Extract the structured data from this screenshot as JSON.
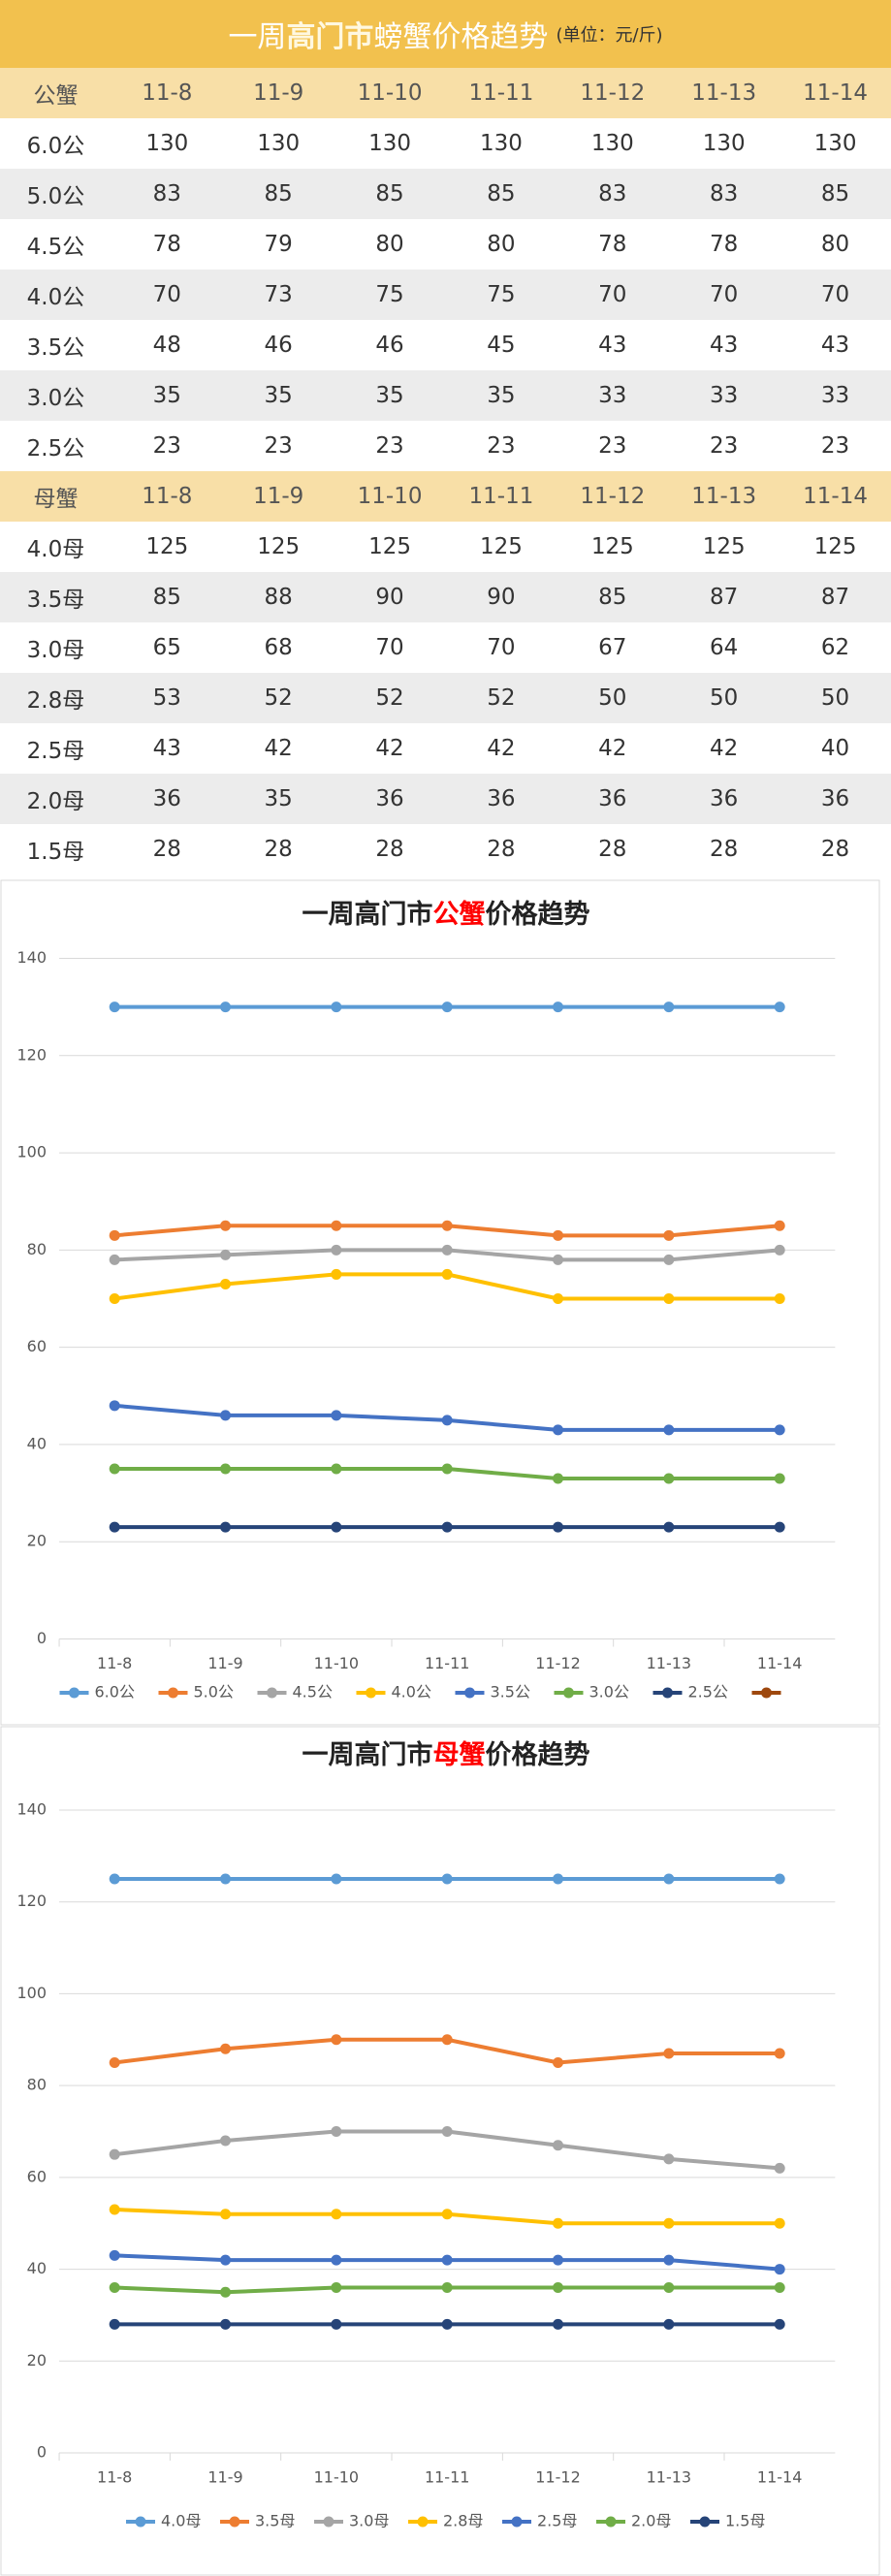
{
  "table": {
    "title_parts": [
      "一周",
      "高门市",
      "螃蟹价格趋势"
    ],
    "unit": "(单位：元/斤)",
    "sections": [
      {
        "header": [
          "公蟹",
          "11-8",
          "11-9",
          "11-10",
          "11-11",
          "11-12",
          "11-13",
          "11-14"
        ],
        "rows": [
          [
            "6.0公",
            130,
            130,
            130,
            130,
            130,
            130,
            130
          ],
          [
            "5.0公",
            83,
            85,
            85,
            85,
            83,
            83,
            85
          ],
          [
            "4.5公",
            78,
            79,
            80,
            80,
            78,
            78,
            80
          ],
          [
            "4.0公",
            70,
            73,
            75,
            75,
            70,
            70,
            70
          ],
          [
            "3.5公",
            48,
            46,
            46,
            45,
            43,
            43,
            43
          ],
          [
            "3.0公",
            35,
            35,
            35,
            35,
            33,
            33,
            33
          ],
          [
            "2.5公",
            23,
            23,
            23,
            23,
            23,
            23,
            23
          ]
        ]
      },
      {
        "header": [
          "母蟹",
          "11-8",
          "11-9",
          "11-10",
          "11-11",
          "11-12",
          "11-13",
          "11-14"
        ],
        "rows": [
          [
            "4.0母",
            125,
            125,
            125,
            125,
            125,
            125,
            125
          ],
          [
            "3.5母",
            85,
            88,
            90,
            90,
            85,
            87,
            87
          ],
          [
            "3.0母",
            65,
            68,
            70,
            70,
            67,
            64,
            62
          ],
          [
            "2.8母",
            53,
            52,
            52,
            52,
            50,
            50,
            50
          ],
          [
            "2.5母",
            43,
            42,
            42,
            42,
            42,
            42,
            40
          ],
          [
            "2.0母",
            36,
            35,
            36,
            36,
            36,
            36,
            36
          ],
          [
            "1.5母",
            28,
            28,
            28,
            28,
            28,
            28,
            28
          ]
        ]
      }
    ]
  },
  "chart_data": [
    {
      "type": "line",
      "title_parts": [
        "一周高门市",
        "公蟹",
        "价格趋势"
      ],
      "categories": [
        "11-8",
        "11-9",
        "11-10",
        "11-11",
        "11-12",
        "11-13",
        "11-14"
      ],
      "ylim": [
        0,
        140
      ],
      "yticks": [
        0,
        20,
        40,
        60,
        80,
        100,
        120,
        140
      ],
      "grid": true,
      "legend": "bottom",
      "series": [
        {
          "name": "6.0公",
          "color": "#5b9bd5",
          "values": [
            130,
            130,
            130,
            130,
            130,
            130,
            130
          ]
        },
        {
          "name": "5.0公",
          "color": "#ed7d31",
          "values": [
            83,
            85,
            85,
            85,
            83,
            83,
            85
          ]
        },
        {
          "name": "4.5公",
          "color": "#a5a5a5",
          "values": [
            78,
            79,
            80,
            80,
            78,
            78,
            80
          ]
        },
        {
          "name": "4.0公",
          "color": "#ffc000",
          "values": [
            70,
            73,
            75,
            75,
            70,
            70,
            70
          ]
        },
        {
          "name": "3.5公",
          "color": "#4472c4",
          "values": [
            48,
            46,
            46,
            45,
            43,
            43,
            43
          ]
        },
        {
          "name": "3.0公",
          "color": "#70ad47",
          "values": [
            35,
            35,
            35,
            35,
            33,
            33,
            33
          ]
        },
        {
          "name": "2.5公",
          "color": "#264478",
          "values": [
            23,
            23,
            23,
            23,
            23,
            23,
            23
          ]
        },
        {
          "name": null,
          "color": "#9e480e",
          "values": [
            null,
            null,
            null,
            null,
            null,
            null,
            null
          ]
        }
      ]
    },
    {
      "type": "line",
      "title_parts": [
        "一周高门市",
        "母蟹",
        "价格趋势"
      ],
      "categories": [
        "11-8",
        "11-9",
        "11-10",
        "11-11",
        "11-12",
        "11-13",
        "11-14"
      ],
      "ylim": [
        0,
        140
      ],
      "yticks": [
        0,
        20,
        40,
        60,
        80,
        100,
        120,
        140
      ],
      "grid": true,
      "legend": "bottom",
      "series": [
        {
          "name": "4.0母",
          "color": "#5b9bd5",
          "values": [
            125,
            125,
            125,
            125,
            125,
            125,
            125
          ]
        },
        {
          "name": "3.5母",
          "color": "#ed7d31",
          "values": [
            85,
            88,
            90,
            90,
            85,
            87,
            87
          ]
        },
        {
          "name": "3.0母",
          "color": "#a5a5a5",
          "values": [
            65,
            68,
            70,
            70,
            67,
            64,
            62
          ]
        },
        {
          "name": "2.8母",
          "color": "#ffc000",
          "values": [
            53,
            52,
            52,
            52,
            50,
            50,
            50
          ]
        },
        {
          "name": "2.5母",
          "color": "#4472c4",
          "values": [
            43,
            42,
            42,
            42,
            42,
            42,
            40
          ]
        },
        {
          "name": "2.0母",
          "color": "#70ad47",
          "values": [
            36,
            35,
            36,
            36,
            36,
            36,
            36
          ]
        },
        {
          "name": "1.5母",
          "color": "#264478",
          "values": [
            28,
            28,
            28,
            28,
            28,
            28,
            28
          ]
        }
      ]
    }
  ]
}
